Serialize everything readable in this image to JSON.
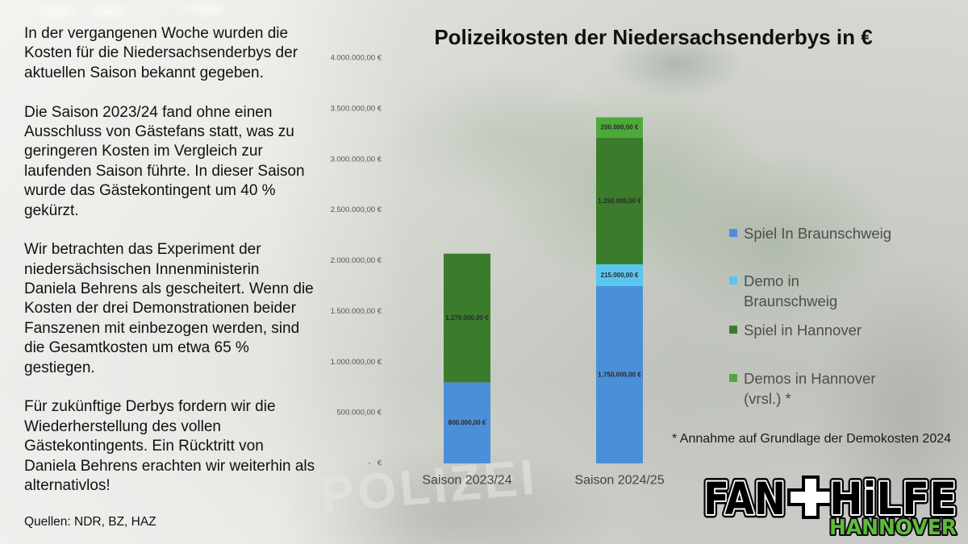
{
  "intro": {
    "paragraphs": [
      {
        "lines": [
          "In der vergangenen Woche wurden die",
          "Kosten für die Niedersachsenderbys der",
          "aktuellen Saison bekannt gegeben."
        ]
      },
      {
        "lines": [
          "Die Saison 2023/24 fand ohne einen",
          "Ausschluss von Gästefans statt, was zu",
          "geringeren Kosten im Vergleich zur",
          "laufenden Saison führte. In dieser Saison",
          "wurde das Gästekontingent um 40 %",
          "gekürzt."
        ]
      },
      {
        "lines": [
          "Wir betrachten das Experiment der",
          "niedersächsischen Innenministerin",
          "Daniela Behrens als gescheitert. Wenn die",
          "Kosten der drei Demonstrationen beider",
          "Fanszenen mit einbezogen werden, sind",
          "die Gesamtkosten um etwa 65 %",
          "gestiegen."
        ]
      },
      {
        "lines": [
          "Für zukünftige Derbys fordern wir die",
          "Wiederherstellung des vollen",
          "Gästekontingents. Ein Rücktritt von",
          "Daniela Behrens erachten wir weiterhin als",
          "alternativlos!"
        ]
      }
    ],
    "sources": "Quellen: NDR, BZ, HAZ"
  },
  "chart_data": {
    "type": "bar",
    "stacked": true,
    "title": "Polizeikosten der Niedersachsenderbys in €",
    "xlabel": "",
    "ylabel": "",
    "categories": [
      "Saison 2023/24",
      "Saison 2024/25"
    ],
    "series": [
      {
        "name": "Spiel In Braunschweig",
        "color": "#4a8fd8",
        "values": [
          800000,
          1750000
        ],
        "labels": [
          "800.000,00 €",
          "1.750.000,00 €"
        ]
      },
      {
        "name": "Demo in Braunschweig",
        "color": "#5ac6ef",
        "values": [
          0,
          215000
        ],
        "labels": [
          null,
          "215.000,00 €"
        ]
      },
      {
        "name": "Spiel in Hannover",
        "color": "#3a7c2b",
        "values": [
          1270000,
          1250000
        ],
        "labels": [
          "1.270.000,00 €",
          "1.250.000,00 €"
        ]
      },
      {
        "name": "Demos in Hannover (vrsl.) *",
        "color": "#4ea93b",
        "values": [
          0,
          200000
        ],
        "labels": [
          null,
          "200.000,00 €"
        ]
      }
    ],
    "ylim": [
      0,
      4000000
    ],
    "y_ticks": [
      {
        "value": 4000000,
        "label": "4.000.000,00 €"
      },
      {
        "value": 3500000,
        "label": "3.500.000,00 €"
      },
      {
        "value": 3000000,
        "label": "3.000.000,00 €"
      },
      {
        "value": 2500000,
        "label": "2.500.000,00 €"
      },
      {
        "value": 2000000,
        "label": "2.000.000,00 €"
      },
      {
        "value": 1500000,
        "label": "1.500.000,00 €"
      },
      {
        "value": 1000000,
        "label": "1.000.000,00 €"
      },
      {
        "value": 500000,
        "label": "500.000,00 €"
      },
      {
        "value": 0,
        "label": "-   €"
      }
    ],
    "grid": false,
    "legend": "right"
  },
  "footnote": "* Annahme auf Grundlage der Demokosten 2024",
  "logo": {
    "word_left": "FAN",
    "word_right": "HiLFE",
    "city": "HANNOVER",
    "icon": "cross-icon"
  },
  "background": {
    "vest_text": "POLIZEI"
  }
}
